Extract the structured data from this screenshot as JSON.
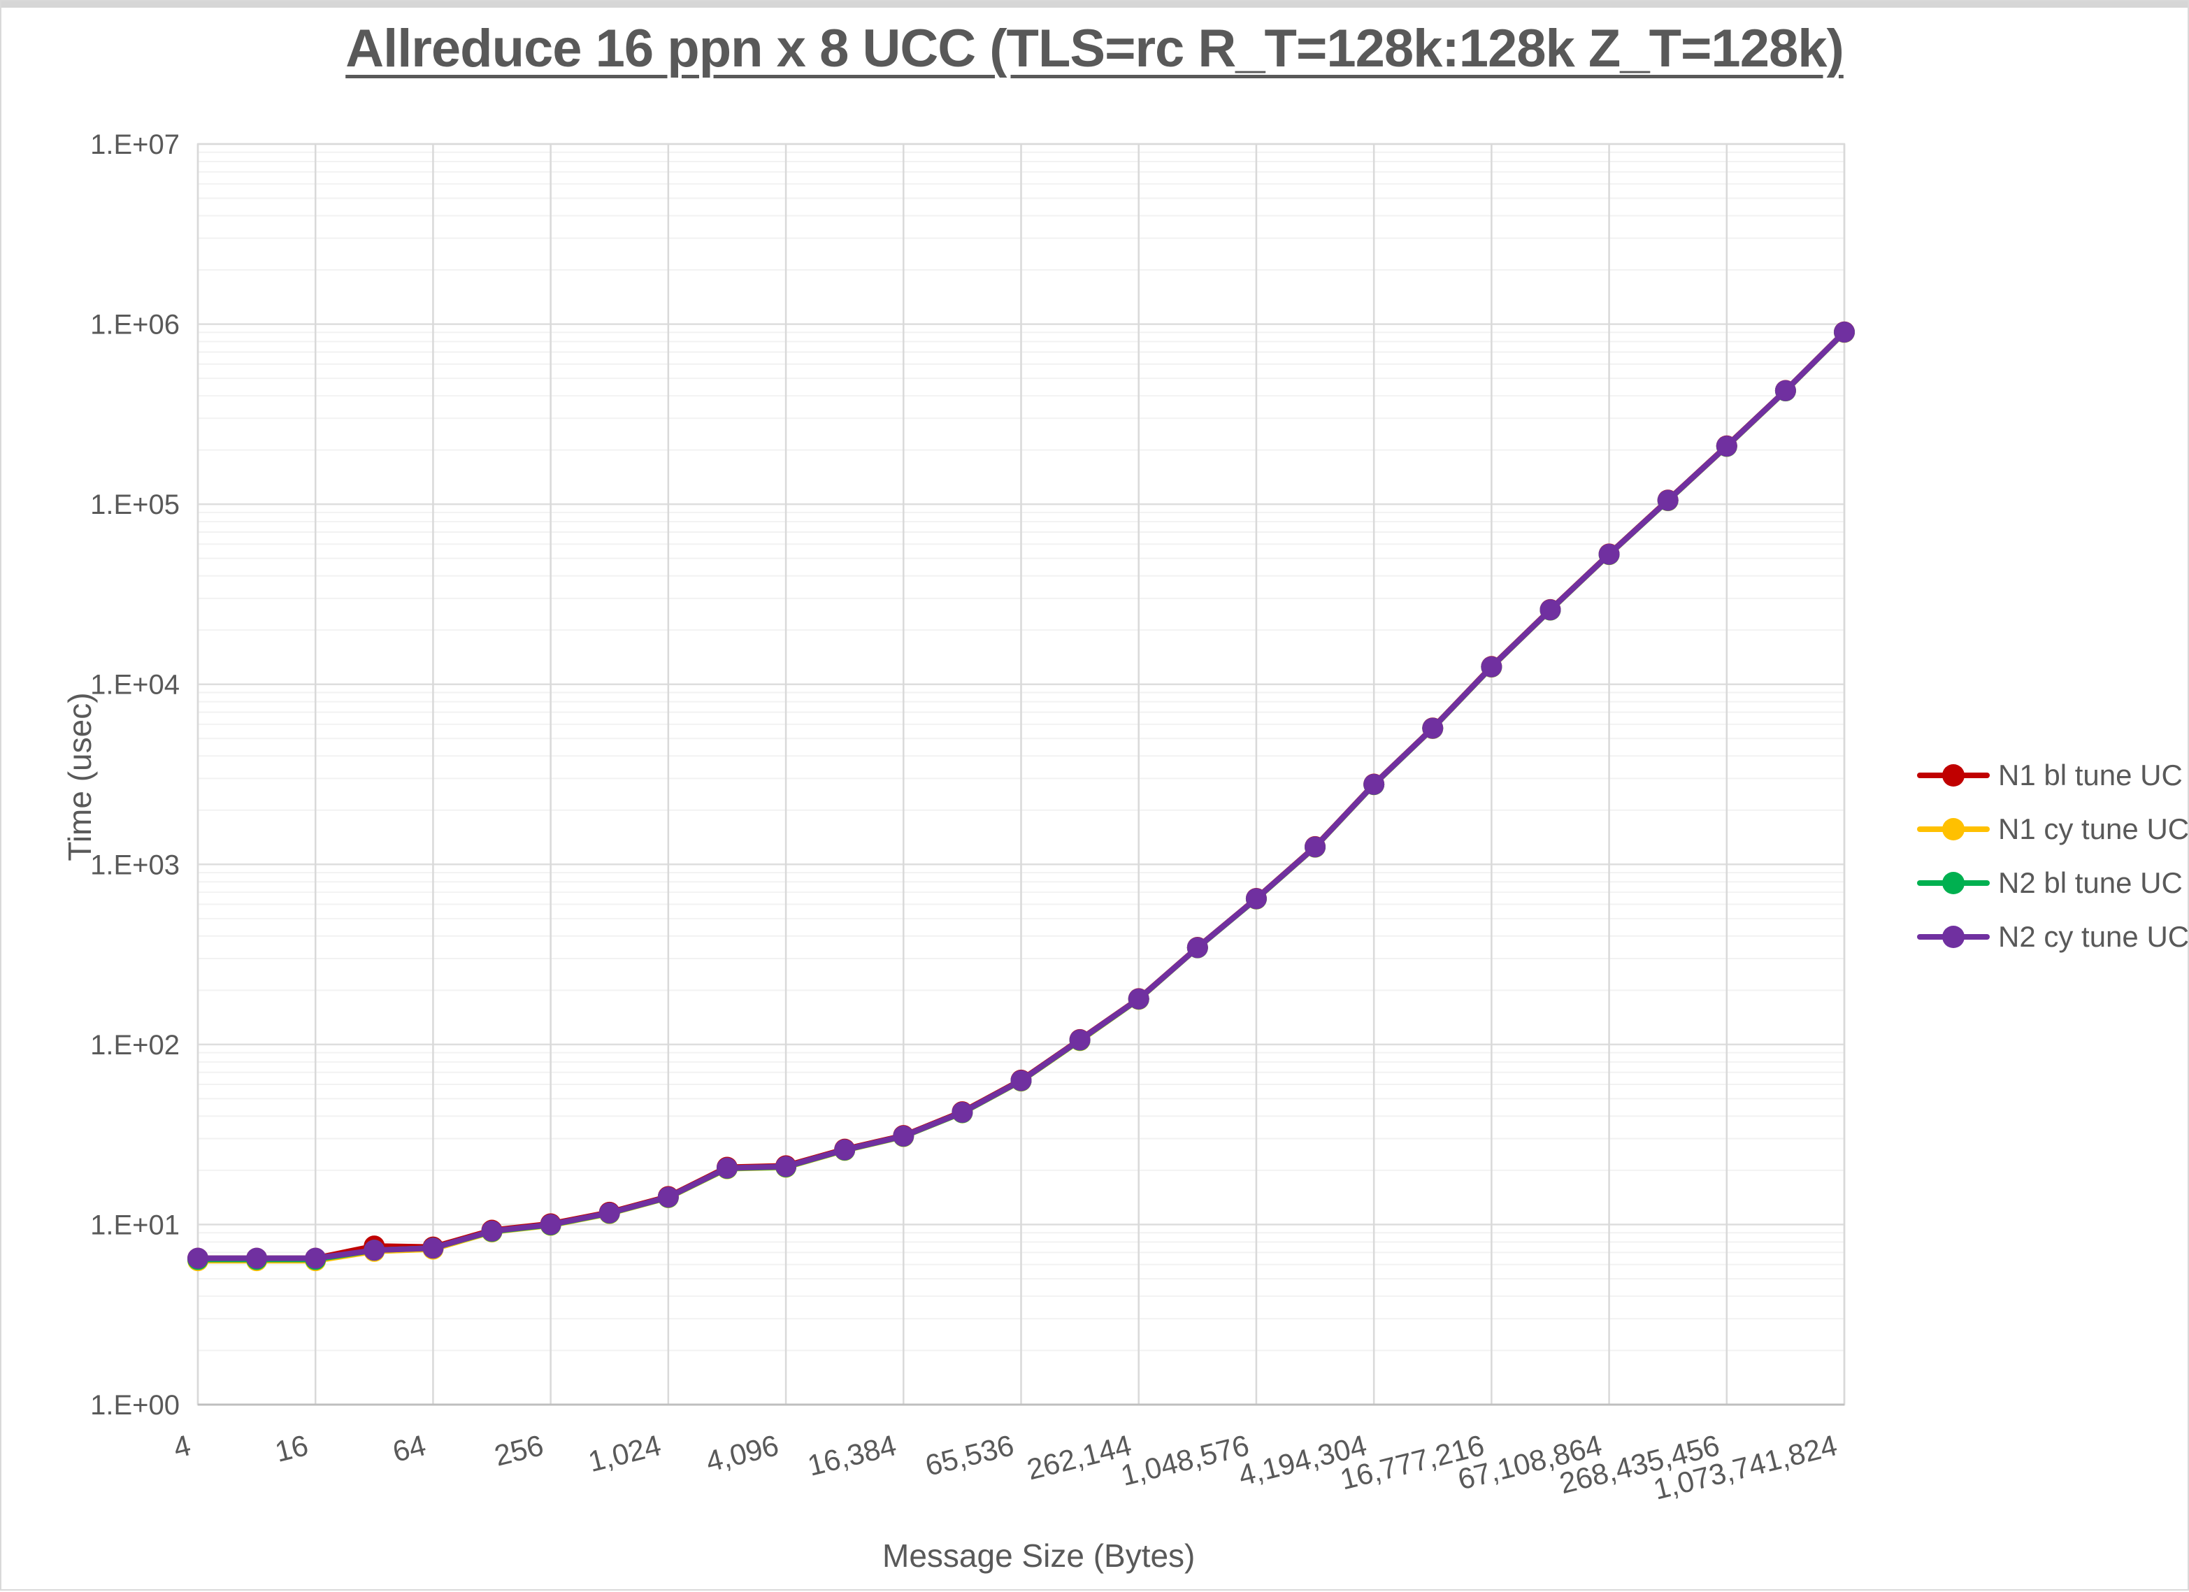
{
  "title": "Allreduce 16 ppn x 8 UCC (TLS=rc R_T=128k:128k Z_T=128k)",
  "axes": {
    "x_title": "Message Size (Bytes)",
    "y_title": "Time (usec)"
  },
  "legend": {
    "items": [
      {
        "label": "N1 bl tune UC",
        "color": "#C00000"
      },
      {
        "label": "N1 cy tune UC",
        "color": "#FFC000"
      },
      {
        "label": "N2 bl tune UC",
        "color": "#00B050"
      },
      {
        "label": "N2 cy tune UC",
        "color": "#7030A0"
      }
    ]
  },
  "chart_data": {
    "type": "line",
    "title": "Allreduce 16 ppn x 8 UCC (TLS=rc R_T=128k:128k Z_T=128k)",
    "xlabel": "Message Size (Bytes)",
    "ylabel": "Time (usec)",
    "x_scale": "log2",
    "y_scale": "log10",
    "xlim": [
      4,
      1073741824
    ],
    "ylim": [
      1,
      10000000
    ],
    "grid": "major-and-minor",
    "legend_position": "right",
    "x": [
      4,
      8,
      16,
      32,
      64,
      128,
      256,
      512,
      1024,
      2048,
      4096,
      8192,
      16384,
      32768,
      65536,
      131072,
      262144,
      524288,
      1048576,
      2097152,
      4194304,
      8388608,
      16777216,
      33554432,
      67108864,
      134217728,
      268435456,
      536870912,
      1073741824
    ],
    "x_tick_values": [
      4,
      16,
      64,
      256,
      1024,
      4096,
      16384,
      65536,
      262144,
      1048576,
      4194304,
      16777216,
      67108864,
      268435456,
      1073741824
    ],
    "x_tick_labels": [
      "4",
      "16",
      "64",
      "256",
      "1,024",
      "4,096",
      "16,384",
      "65,536",
      "262,144",
      "1,048,576",
      "4,194,304",
      "16,777,216",
      "67,108,864",
      "268,435,456",
      "1,073,741,824"
    ],
    "y_tick_labels": [
      "1.E+00",
      "1.E+01",
      "1.E+02",
      "1.E+03",
      "1.E+04",
      "1.E+05",
      "1.E+06",
      "1.E+07"
    ],
    "series": [
      {
        "name": "N1 bl tune UC",
        "color": "#C00000",
        "values": [
          6.5,
          6.5,
          6.5,
          7.6,
          7.5,
          9.3,
          10.1,
          11.7,
          14.3,
          20.8,
          21.2,
          26.2,
          31.2,
          42.3,
          63.4,
          106.5,
          179.5,
          346,
          647,
          1255,
          2790,
          5720,
          12550,
          26000,
          52900,
          105400,
          210800,
          428000,
          905000
        ]
      },
      {
        "name": "N1 cy tune UC",
        "color": "#FFC000",
        "values": [
          6.3,
          6.3,
          6.3,
          7.1,
          7.3,
          9.1,
          9.9,
          11.5,
          14.1,
          20.4,
          20.8,
          25.8,
          30.8,
          41.7,
          62.6,
          105,
          178,
          344,
          642,
          1245,
          2770,
          5680,
          12450,
          25800,
          52500,
          104600,
          209200,
          425500,
          900000
        ]
      },
      {
        "name": "N2 bl tune UC",
        "color": "#00B050",
        "values": [
          6.4,
          6.4,
          6.4,
          7.2,
          7.4,
          9.15,
          9.95,
          11.55,
          14.15,
          20.5,
          20.9,
          25.9,
          30.9,
          41.8,
          62.8,
          105.5,
          178.5,
          344.5,
          643,
          1248,
          2775,
          5690,
          12480,
          25850,
          52600,
          104800,
          209600,
          426200,
          901500
        ]
      },
      {
        "name": "N2 cy tune UC",
        "color": "#7030A0",
        "values": [
          6.5,
          6.5,
          6.5,
          7.2,
          7.4,
          9.2,
          10.0,
          11.6,
          14.2,
          20.6,
          21.0,
          26,
          31,
          42,
          63,
          106,
          179,
          345,
          645,
          1250,
          2780,
          5700,
          12500,
          25900,
          52700,
          105000,
          210000,
          427000,
          903000
        ]
      }
    ]
  }
}
